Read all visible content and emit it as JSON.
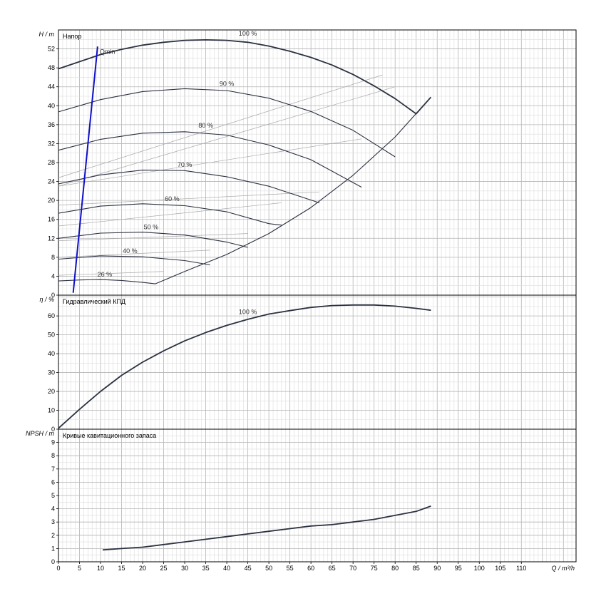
{
  "chart_data": [
    {
      "type": "line",
      "title": "Напор",
      "ylabel": "H / m",
      "ylim": [
        0,
        56
      ],
      "yticks": [
        0,
        4,
        8,
        12,
        16,
        20,
        24,
        28,
        32,
        36,
        40,
        44,
        48,
        52
      ],
      "xlim": [
        0,
        123
      ],
      "series": [
        {
          "name": "100 %",
          "x": [
            0,
            5,
            10,
            15,
            20,
            25,
            30,
            35,
            40,
            45,
            50,
            55,
            60,
            65,
            70,
            75,
            80,
            85,
            88.5
          ],
          "y": [
            47.8,
            49.3,
            50.8,
            51.9,
            52.8,
            53.4,
            53.8,
            53.9,
            53.8,
            53.4,
            52.6,
            51.5,
            50.2,
            48.6,
            46.6,
            44.2,
            41.5,
            38.3,
            41.8
          ]
        },
        {
          "name": "90 %",
          "x": [
            0,
            10,
            20,
            30,
            40,
            50,
            60,
            70,
            80
          ],
          "y": [
            38.7,
            41.3,
            43.0,
            43.6,
            43.2,
            41.6,
            38.8,
            34.8,
            29.2
          ]
        },
        {
          "name": "80 %",
          "x": [
            0,
            10,
            20,
            30,
            40,
            50,
            60,
            72
          ],
          "y": [
            30.6,
            32.9,
            34.2,
            34.5,
            33.8,
            31.7,
            28.6,
            22.8
          ]
        },
        {
          "name": "70 %",
          "x": [
            0,
            10,
            20,
            30,
            40,
            50,
            62
          ],
          "y": [
            23.5,
            25.4,
            26.4,
            26.3,
            25.0,
            23.0,
            19.5
          ]
        },
        {
          "name": "60 %",
          "x": [
            0,
            10,
            20,
            30,
            40,
            50,
            53
          ],
          "y": [
            17.3,
            18.8,
            19.3,
            18.9,
            17.6,
            15.1,
            14.8
          ]
        },
        {
          "name": "50 %",
          "x": [
            0,
            10,
            20,
            30,
            40,
            45
          ],
          "y": [
            12.0,
            13.1,
            13.3,
            12.7,
            11.2,
            10.1
          ]
        },
        {
          "name": "40 %",
          "x": [
            0,
            10,
            20,
            30,
            36
          ],
          "y": [
            7.6,
            8.3,
            8.1,
            7.3,
            6.4
          ]
        },
        {
          "name": "26 %",
          "x": [
            0,
            5,
            10,
            15,
            20,
            23
          ],
          "y": [
            3.0,
            3.2,
            3.3,
            3.1,
            2.7,
            2.4
          ]
        },
        {
          "name": "",
          "x": [
            23,
            30,
            40,
            50,
            60,
            70,
            80,
            88.5
          ],
          "y": [
            2.4,
            5.0,
            8.6,
            13.0,
            18.5,
            25.3,
            33.4,
            41.8
          ]
        }
      ],
      "qmin_line": {
        "label": "Qmin",
        "x": [
          3.5,
          9.3
        ],
        "y": [
          0.5,
          52.5
        ],
        "color": "#1010c8"
      },
      "curve_labels": [
        "100 %",
        "90 %",
        "80 %",
        "70 %",
        "60 %",
        "50 %",
        "40 %",
        "26 %"
      ],
      "efficiency_guides": {
        "x0": 0,
        "lines": [
          [
            [
              0,
              4.2
            ],
            [
              25,
              5.0
            ]
          ],
          [
            [
              0,
              8.0
            ],
            [
              36,
              9.5
            ]
          ],
          [
            [
              0,
              11.5
            ],
            [
              45,
              13.0
            ]
          ],
          [
            [
              0,
              14.6
            ],
            [
              53,
              19.5
            ]
          ],
          [
            [
              0,
              19.0
            ],
            [
              62,
              21.8
            ]
          ],
          [
            [
              0,
              23.0
            ],
            [
              72,
              33.0
            ]
          ],
          [
            [
              0,
              23.0
            ],
            [
              80,
              44.0
            ]
          ],
          [
            [
              0,
              24.8
            ],
            [
              77,
              46.5
            ]
          ]
        ]
      },
      "grid": true
    },
    {
      "type": "line",
      "title": "Гидравлический КПД",
      "ylabel": "η / %",
      "ylim": [
        0,
        71
      ],
      "yticks": [
        0,
        10,
        20,
        30,
        40,
        50,
        60
      ],
      "xlim": [
        0,
        123
      ],
      "series": [
        {
          "name": "100 %",
          "x": [
            0,
            5,
            10,
            15,
            20,
            25,
            30,
            35,
            40,
            45,
            50,
            55,
            60,
            65,
            70,
            75,
            80,
            85,
            88.5
          ],
          "y": [
            0.5,
            10.5,
            20.0,
            28.5,
            35.5,
            41.5,
            46.8,
            51.2,
            55.0,
            58.2,
            61.0,
            62.8,
            64.5,
            65.5,
            65.8,
            65.8,
            65.2,
            64.0,
            63.0
          ]
        }
      ],
      "grid": true
    },
    {
      "type": "line",
      "title": "Кривые кавитационного запаса",
      "ylabel": "NPSH / m",
      "ylim": [
        0,
        10
      ],
      "yticks": [
        0,
        1,
        2,
        3,
        4,
        5,
        6,
        7,
        8,
        9
      ],
      "xlabel": "Q / m³/h",
      "xlim": [
        0,
        123
      ],
      "xticks": [
        0,
        5,
        10,
        15,
        20,
        25,
        30,
        35,
        40,
        45,
        50,
        55,
        60,
        65,
        70,
        75,
        80,
        85,
        90,
        95,
        100,
        105,
        110
      ],
      "series": [
        {
          "name": "",
          "x": [
            10.5,
            15,
            20,
            25,
            30,
            35,
            40,
            45,
            50,
            55,
            60,
            65,
            70,
            75,
            80,
            85,
            88.5
          ],
          "y": [
            0.9,
            1.0,
            1.1,
            1.3,
            1.5,
            1.7,
            1.9,
            2.1,
            2.3,
            2.5,
            2.7,
            2.8,
            3.0,
            3.2,
            3.5,
            3.8,
            4.2
          ]
        }
      ],
      "grid": true
    }
  ]
}
